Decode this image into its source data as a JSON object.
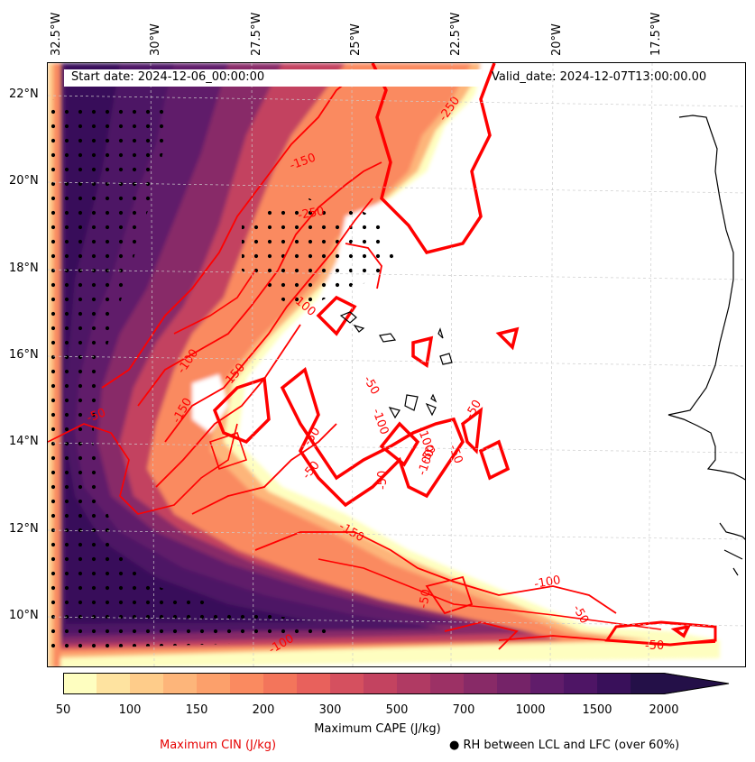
{
  "map": {
    "lon_labels": [
      "32.5°W",
      "30°W",
      "27.5°W",
      "25°W",
      "22.5°W",
      "20°W",
      "17.5°W"
    ],
    "lat_labels": [
      "22°N",
      "20°N",
      "18°N",
      "16°N",
      "14°N",
      "12°N",
      "10°N"
    ],
    "start_date": "Start date: 2024-12-06_00:00:00",
    "valid_date": "Valid_date: 2024-12-07T13:00:00.00",
    "cin_contour_labels": [
      "-250",
      "-150",
      "-250",
      "-100",
      "-100",
      "-150",
      "-150",
      "-50",
      "-50",
      "-50",
      "-50",
      "-100",
      "-150",
      "-100",
      "-50",
      "-50",
      "-50",
      "-100",
      "-50",
      "-100",
      "-50",
      "-50",
      "-50",
      "-100"
    ],
    "colors": {
      "cin_contour": "#ff0000",
      "coastline": "#000000",
      "gridline": "#cccccc"
    }
  },
  "colorbar": {
    "title": "Maximum CAPE (J/kg)",
    "ticks": [
      "50",
      "100",
      "150",
      "200",
      "300",
      "500",
      "700",
      "1000",
      "1500",
      "2000"
    ],
    "colors": [
      "#fefec0",
      "#fee3a0",
      "#fecc8a",
      "#fdb57a",
      "#fca06b",
      "#fa8a60",
      "#f3755b",
      "#e8615c",
      "#d5505f",
      "#c34360",
      "#b03a63",
      "#9c3165",
      "#882a67",
      "#752368",
      "#601c6a",
      "#4e1565",
      "#39105a",
      "#241048"
    ]
  },
  "legend": {
    "cin_label": "Maximum CIN (J/kg)",
    "rh_label": "● RH between LCL and LFC (over 60%)"
  }
}
